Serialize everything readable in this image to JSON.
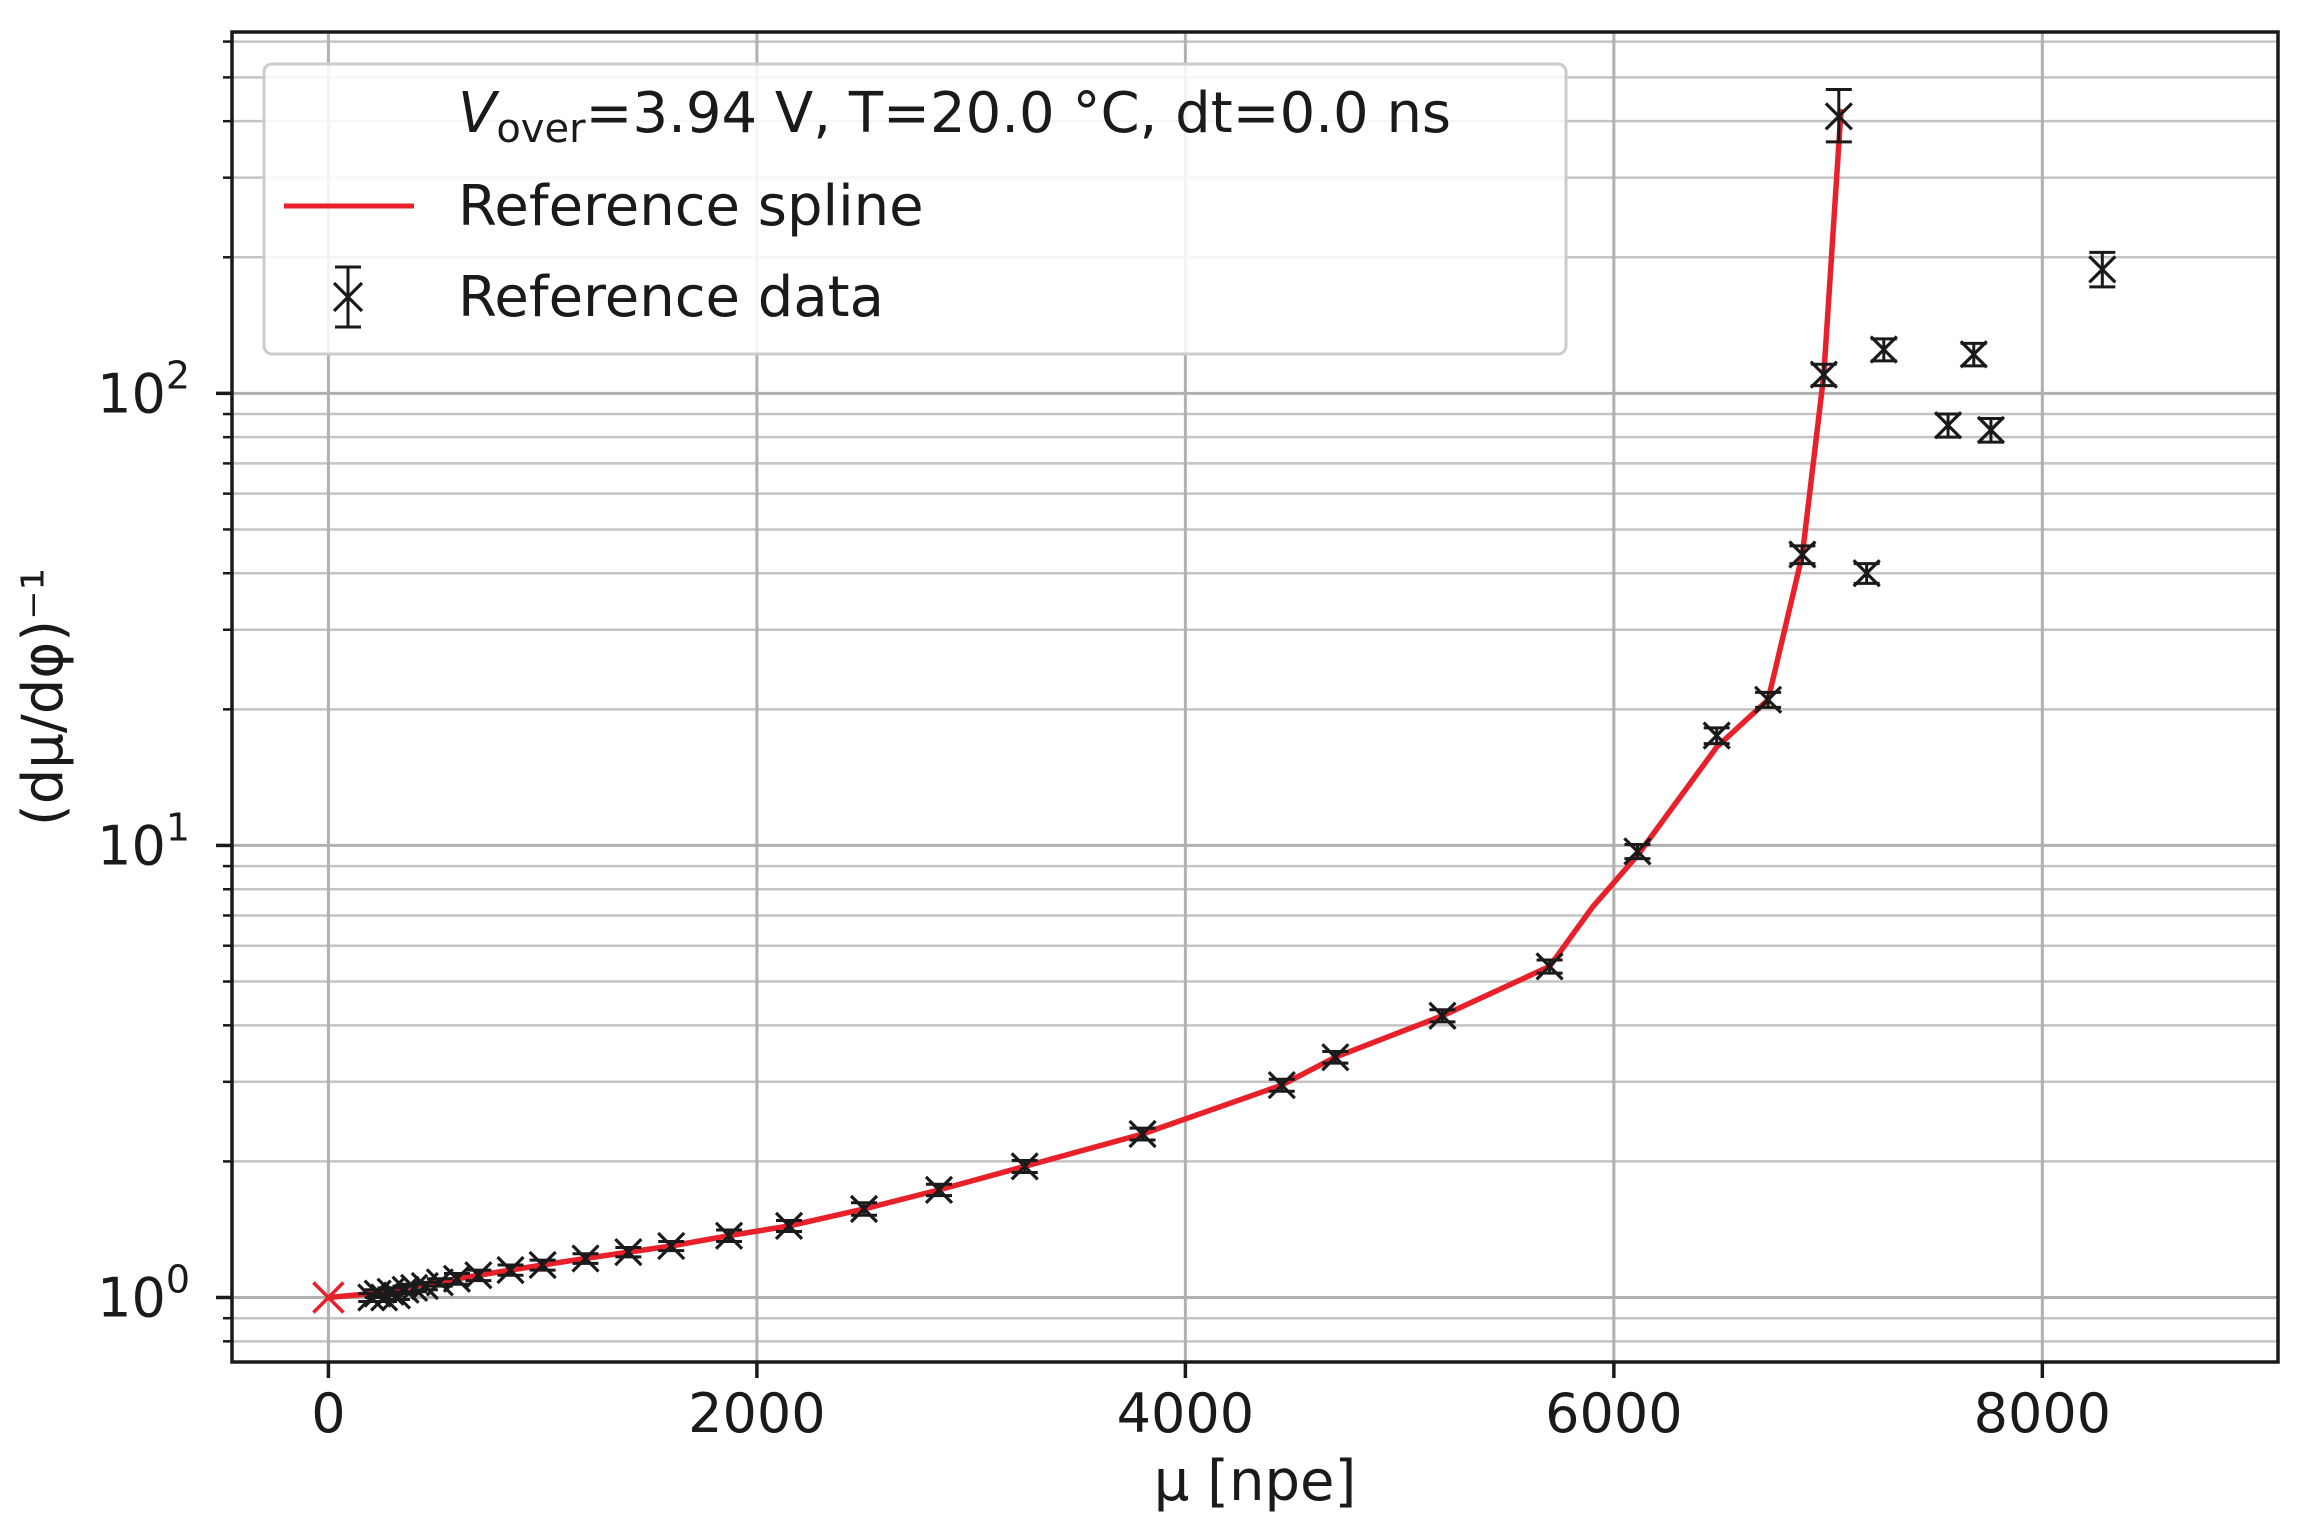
{
  "chart_data": {
    "type": "scatter",
    "xlabel": "μ [npe]",
    "ylabel": "(dμ/dφ)⁻¹",
    "xlim": [
      -450,
      9100
    ],
    "ylim": [
      0.72,
      630
    ],
    "yscale": "log",
    "xticks": [
      0,
      2000,
      4000,
      6000,
      8000
    ],
    "xtick_labels": [
      "0",
      "2000",
      "4000",
      "6000",
      "8000"
    ],
    "yticks": [
      1,
      10,
      100
    ],
    "ytick_labels": [
      {
        "base": "10",
        "exp": "0"
      },
      {
        "base": "10",
        "exp": "1"
      },
      {
        "base": "10",
        "exp": "2"
      }
    ],
    "grid": true,
    "legend": {
      "position": "top-left",
      "title": {
        "italic": "V",
        "sub": "over",
        "rest": "=3.94 V, T=20.0 °C, dt=0.0 ns"
      },
      "entries": [
        "Reference spline",
        "Reference data"
      ]
    },
    "colors": {
      "spline": "#e8202a",
      "data": "#1a1a1a",
      "origin": "#e8202a"
    },
    "origin_point": {
      "x": 0,
      "y": 1.0
    },
    "series": [
      {
        "name": "Reference spline",
        "type": "line",
        "x": [
          0,
          200,
          300,
          400,
          500,
          600,
          700,
          850,
          1000,
          1200,
          1400,
          1600,
          1870,
          2150,
          2500,
          2850,
          3250,
          3800,
          4450,
          4700,
          5200,
          5700,
          5900,
          6110,
          6480,
          6720,
          6880,
          6980,
          7060
        ],
        "y": [
          1.0,
          1.02,
          1.04,
          1.06,
          1.08,
          1.1,
          1.12,
          1.15,
          1.18,
          1.22,
          1.26,
          1.3,
          1.37,
          1.44,
          1.57,
          1.73,
          1.95,
          2.3,
          2.95,
          3.4,
          4.2,
          5.4,
          7.3,
          9.5,
          16.5,
          21.0,
          44.0,
          110.0,
          420.0
        ]
      },
      {
        "name": "Reference data",
        "type": "errorbar",
        "points": [
          {
            "x": 200,
            "y": 1.0,
            "lo": 0.98,
            "hi": 1.02
          },
          {
            "x": 230,
            "y": 1.02,
            "lo": 1.0,
            "hi": 1.04
          },
          {
            "x": 260,
            "y": 1.0,
            "lo": 0.98,
            "hi": 1.02
          },
          {
            "x": 290,
            "y": 1.03,
            "lo": 1.01,
            "hi": 1.05
          },
          {
            "x": 320,
            "y": 1.01,
            "lo": 0.99,
            "hi": 1.03
          },
          {
            "x": 360,
            "y": 1.04,
            "lo": 1.02,
            "hi": 1.06
          },
          {
            "x": 400,
            "y": 1.05,
            "lo": 1.03,
            "hi": 1.07
          },
          {
            "x": 450,
            "y": 1.06,
            "lo": 1.04,
            "hi": 1.08
          },
          {
            "x": 520,
            "y": 1.08,
            "lo": 1.06,
            "hi": 1.1
          },
          {
            "x": 600,
            "y": 1.1,
            "lo": 1.07,
            "hi": 1.13
          },
          {
            "x": 700,
            "y": 1.12,
            "lo": 1.09,
            "hi": 1.15
          },
          {
            "x": 850,
            "y": 1.15,
            "lo": 1.12,
            "hi": 1.18
          },
          {
            "x": 1000,
            "y": 1.18,
            "lo": 1.15,
            "hi": 1.21
          },
          {
            "x": 1200,
            "y": 1.22,
            "lo": 1.19,
            "hi": 1.25
          },
          {
            "x": 1400,
            "y": 1.26,
            "lo": 1.23,
            "hi": 1.29
          },
          {
            "x": 1600,
            "y": 1.3,
            "lo": 1.27,
            "hi": 1.33
          },
          {
            "x": 1870,
            "y": 1.37,
            "lo": 1.33,
            "hi": 1.41
          },
          {
            "x": 2150,
            "y": 1.44,
            "lo": 1.4,
            "hi": 1.48
          },
          {
            "x": 2500,
            "y": 1.57,
            "lo": 1.52,
            "hi": 1.62
          },
          {
            "x": 2850,
            "y": 1.73,
            "lo": 1.68,
            "hi": 1.78
          },
          {
            "x": 3250,
            "y": 1.95,
            "lo": 1.89,
            "hi": 2.01
          },
          {
            "x": 3800,
            "y": 2.3,
            "lo": 2.23,
            "hi": 2.37
          },
          {
            "x": 4450,
            "y": 2.95,
            "lo": 2.86,
            "hi": 3.04
          },
          {
            "x": 4700,
            "y": 3.4,
            "lo": 3.3,
            "hi": 3.5
          },
          {
            "x": 5200,
            "y": 4.2,
            "lo": 4.07,
            "hi": 4.33
          },
          {
            "x": 5700,
            "y": 5.4,
            "lo": 5.22,
            "hi": 5.58
          },
          {
            "x": 6110,
            "y": 9.7,
            "lo": 9.35,
            "hi": 10.05
          },
          {
            "x": 6480,
            "y": 17.5,
            "lo": 16.8,
            "hi": 18.2
          },
          {
            "x": 6720,
            "y": 21.0,
            "lo": 20.2,
            "hi": 21.8
          },
          {
            "x": 6880,
            "y": 44.0,
            "lo": 42.0,
            "hi": 46.0
          },
          {
            "x": 6980,
            "y": 110.0,
            "lo": 104.0,
            "hi": 116.0
          },
          {
            "x": 7050,
            "y": 410.0,
            "lo": 360.0,
            "hi": 470.0
          },
          {
            "x": 7180,
            "y": 40.0,
            "lo": 38.0,
            "hi": 42.0
          },
          {
            "x": 7260,
            "y": 125.0,
            "lo": 118.0,
            "hi": 132.0
          },
          {
            "x": 7560,
            "y": 85.0,
            "lo": 80.0,
            "hi": 90.0
          },
          {
            "x": 7680,
            "y": 122.0,
            "lo": 115.0,
            "hi": 129.0
          },
          {
            "x": 7760,
            "y": 83.0,
            "lo": 78.0,
            "hi": 88.0
          },
          {
            "x": 8280,
            "y": 188.0,
            "lo": 172.0,
            "hi": 205.0
          }
        ]
      }
    ]
  }
}
